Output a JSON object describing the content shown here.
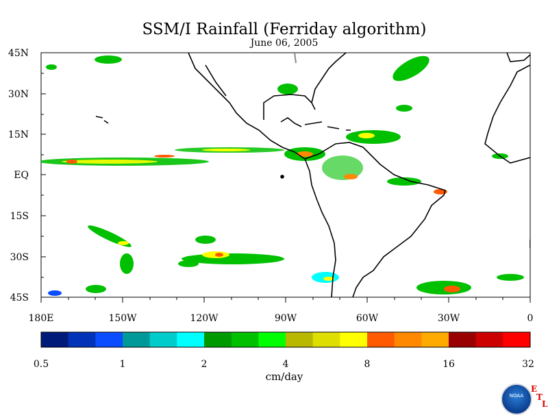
{
  "title": "SSM/I Rainfall (Ferriday algorithm)",
  "subtitle": "June 06, 2005",
  "lat_labels": [
    "45N",
    "30N",
    "15N",
    "EQ",
    "15S",
    "30S",
    "45S"
  ],
  "lon_labels": [
    "180E",
    "150W",
    "120W",
    "90W",
    "60W",
    "30W",
    "0"
  ],
  "colorbar": {
    "colors": [
      "#001a7a",
      "#0033b8",
      "#0a4dff",
      "#009999",
      "#00cccc",
      "#00ffff",
      "#009a00",
      "#00c000",
      "#00ff00",
      "#b8b800",
      "#dede00",
      "#ffff00",
      "#ff5a00",
      "#ff8800",
      "#ffaa00",
      "#990000",
      "#cc0000",
      "#ff0000"
    ],
    "tick_labels": [
      "0.5",
      "1",
      "2",
      "4",
      "8",
      "16",
      "32"
    ],
    "unit_label": "cm/day"
  },
  "logo": {
    "name": "NOAA",
    "text": "NOAA",
    "etl": [
      "E",
      "T",
      "L"
    ]
  }
}
